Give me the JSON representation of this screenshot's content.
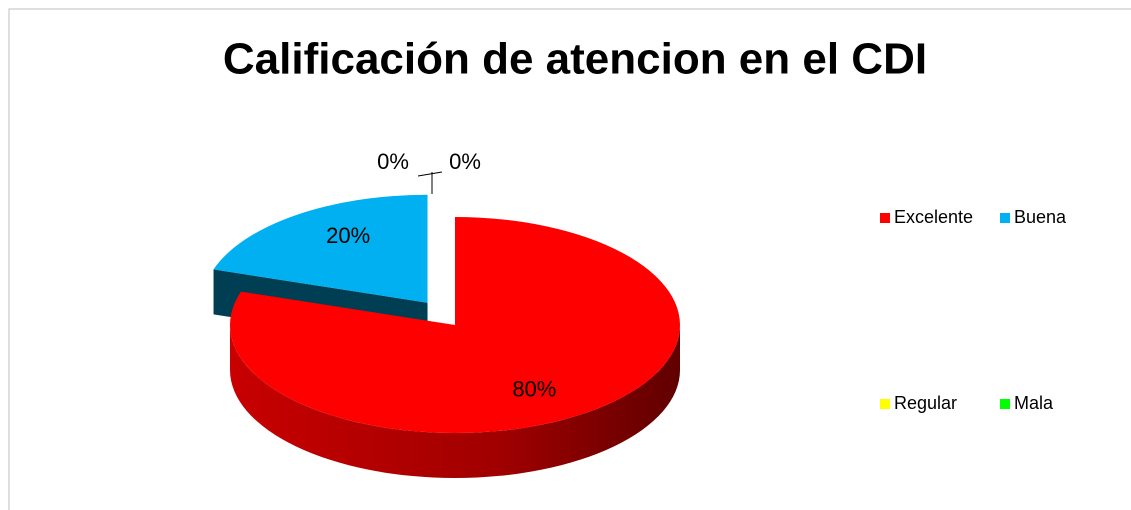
{
  "chart_data": {
    "type": "pie",
    "title": "Calificación de atencion en el CDI",
    "categories": [
      "Excelente",
      "Buena",
      "Regular",
      "Mala"
    ],
    "values": [
      80,
      20,
      0,
      0
    ],
    "value_labels": [
      "80%",
      "20%",
      "0%",
      "0%"
    ],
    "colors": [
      "#ff0000",
      "#00b0f0",
      "#ffff00",
      "#00ff00"
    ],
    "exploded": [
      false,
      true,
      false,
      false
    ],
    "legend": "right"
  }
}
